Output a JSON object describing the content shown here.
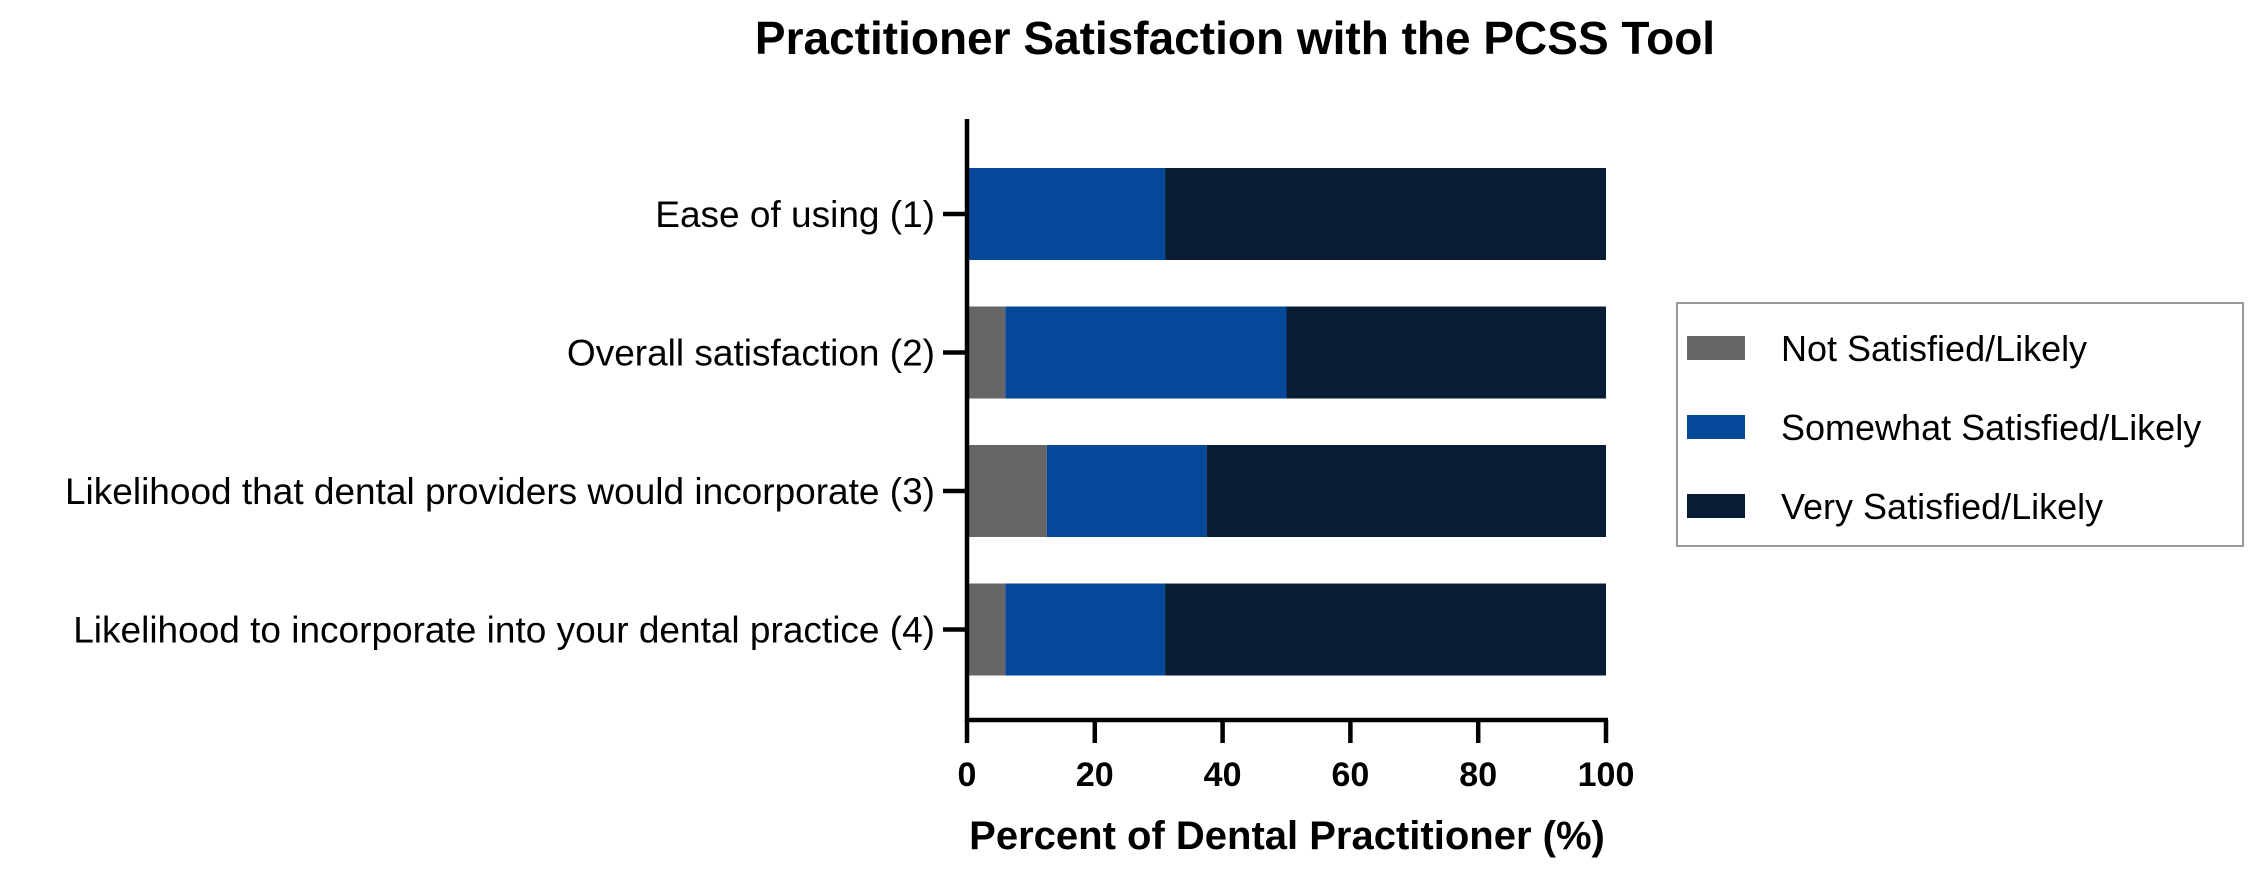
{
  "chart_data": {
    "type": "bar",
    "orientation": "horizontal",
    "stacked": true,
    "title": "Practitioner Satisfaction with the PCSS Tool",
    "xlabel": "Percent of Dental Practitioner (%)",
    "ylabel": "",
    "xlim": [
      0,
      100
    ],
    "x_ticks": [
      "0",
      "20",
      "40",
      "60",
      "80",
      "100"
    ],
    "grid": false,
    "legend_position": "right",
    "categories": [
      "Ease of using (1)",
      "Overall satisfaction (2)",
      "Likelihood that dental providers would incorporate (3)",
      "Likelihood to incorporate into your dental practice (4)"
    ],
    "series": [
      {
        "name": "Not Satisfied/Likely",
        "color": "#666666",
        "values": [
          0,
          6,
          12.5,
          6
        ]
      },
      {
        "name": "Somewhat Satisfied/Likely",
        "color": "#054799",
        "values": [
          31,
          44,
          25,
          25
        ]
      },
      {
        "name": "Very Satisfied/Likely",
        "color": "#081c36",
        "values": [
          69,
          50,
          62.5,
          69
        ]
      }
    ]
  }
}
